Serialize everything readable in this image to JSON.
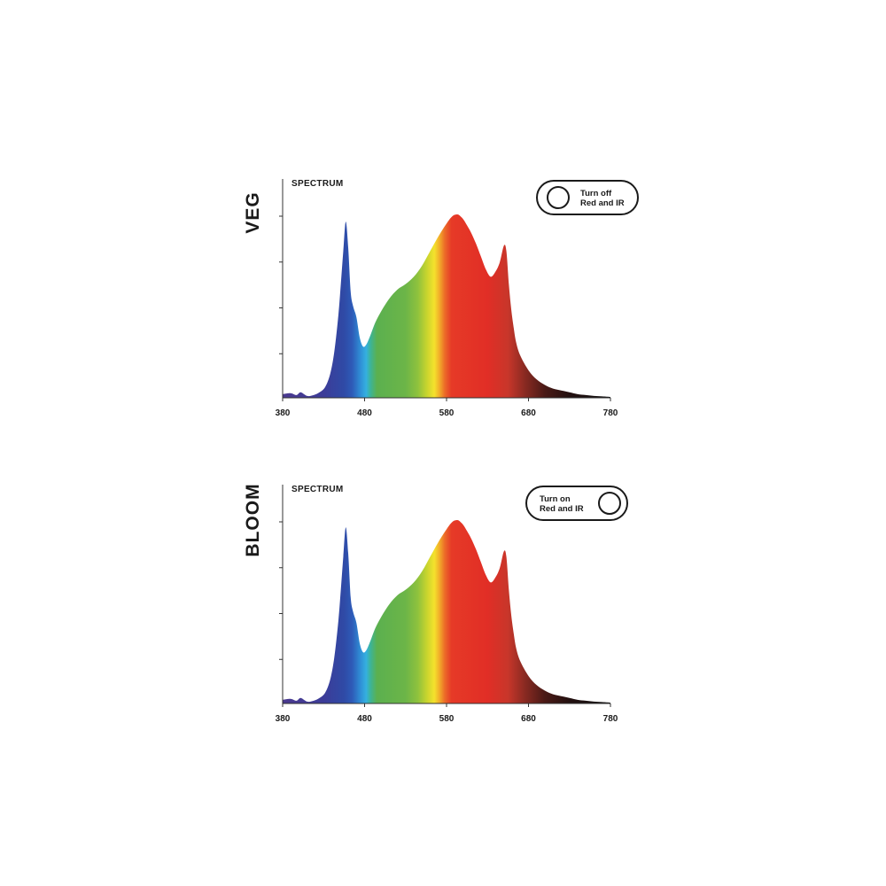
{
  "panels": [
    {
      "label": "VEG",
      "chart_title": "SPECTRUM",
      "toggle": {
        "line1": "Turn off",
        "line2": "Red and IR",
        "state": "on"
      }
    },
    {
      "label": "BLOOM",
      "chart_title": "SPECTRUM",
      "toggle": {
        "line1": "Turn on",
        "line2": "Red and IR",
        "state": "off"
      }
    }
  ],
  "chart_data": [
    {
      "type": "area",
      "title": "SPECTRUM",
      "xlabel": "",
      "ylabel": "",
      "xlim": [
        380,
        780
      ],
      "ylim": [
        0,
        1
      ],
      "x_ticks": [
        380,
        480,
        580,
        680,
        780
      ],
      "y_tick_count": 4,
      "fill": "visible-spectrum gradient",
      "x": [
        380,
        390,
        397,
        402,
        410,
        418,
        425,
        432,
        438,
        443,
        448,
        451,
        454,
        457,
        460,
        463,
        466,
        470,
        474,
        478,
        482,
        487,
        493,
        500,
        510,
        520,
        530,
        540,
        550,
        560,
        570,
        580,
        587,
        593,
        597,
        601,
        605,
        610,
        616,
        622,
        628,
        634,
        640,
        645,
        650,
        653,
        656,
        659,
        662,
        665,
        670,
        680,
        690,
        700,
        710,
        720,
        730,
        740,
        750,
        760,
        770,
        780
      ],
      "series": [
        {
          "values": [
            0.02,
            0.025,
            0.015,
            0.03,
            0.01,
            0.015,
            0.03,
            0.06,
            0.13,
            0.25,
            0.45,
            0.62,
            0.8,
            0.96,
            0.82,
            0.58,
            0.5,
            0.44,
            0.33,
            0.28,
            0.29,
            0.34,
            0.41,
            0.47,
            0.54,
            0.59,
            0.62,
            0.66,
            0.72,
            0.8,
            0.88,
            0.95,
            0.99,
            1.0,
            0.99,
            0.97,
            0.94,
            0.9,
            0.84,
            0.77,
            0.7,
            0.66,
            0.69,
            0.74,
            0.83,
            0.8,
            0.62,
            0.48,
            0.38,
            0.3,
            0.23,
            0.15,
            0.1,
            0.07,
            0.05,
            0.04,
            0.03,
            0.02,
            0.015,
            0.01,
            0.008,
            0.005
          ]
        }
      ]
    },
    {
      "type": "area",
      "title": "SPECTRUM",
      "xlabel": "",
      "ylabel": "",
      "xlim": [
        380,
        780
      ],
      "ylim": [
        0,
        1
      ],
      "x_ticks": [
        380,
        480,
        580,
        680,
        780
      ],
      "y_tick_count": 4,
      "fill": "visible-spectrum gradient",
      "x": [
        380,
        390,
        397,
        402,
        410,
        418,
        425,
        432,
        438,
        443,
        448,
        451,
        454,
        457,
        460,
        463,
        466,
        470,
        474,
        478,
        482,
        487,
        493,
        500,
        510,
        520,
        530,
        540,
        550,
        560,
        570,
        580,
        587,
        593,
        597,
        601,
        605,
        610,
        616,
        622,
        628,
        634,
        640,
        645,
        650,
        653,
        656,
        659,
        662,
        665,
        670,
        680,
        690,
        700,
        710,
        720,
        730,
        740,
        750,
        760,
        770,
        780
      ],
      "series": [
        {
          "values": [
            0.02,
            0.025,
            0.015,
            0.03,
            0.01,
            0.015,
            0.03,
            0.06,
            0.13,
            0.25,
            0.45,
            0.62,
            0.8,
            0.96,
            0.82,
            0.58,
            0.5,
            0.44,
            0.33,
            0.28,
            0.29,
            0.34,
            0.41,
            0.47,
            0.54,
            0.59,
            0.62,
            0.66,
            0.72,
            0.8,
            0.88,
            0.95,
            0.99,
            1.0,
            0.99,
            0.97,
            0.94,
            0.9,
            0.84,
            0.77,
            0.7,
            0.66,
            0.69,
            0.74,
            0.83,
            0.8,
            0.62,
            0.48,
            0.38,
            0.3,
            0.23,
            0.15,
            0.1,
            0.07,
            0.05,
            0.04,
            0.03,
            0.02,
            0.015,
            0.01,
            0.008,
            0.005
          ]
        }
      ]
    }
  ]
}
